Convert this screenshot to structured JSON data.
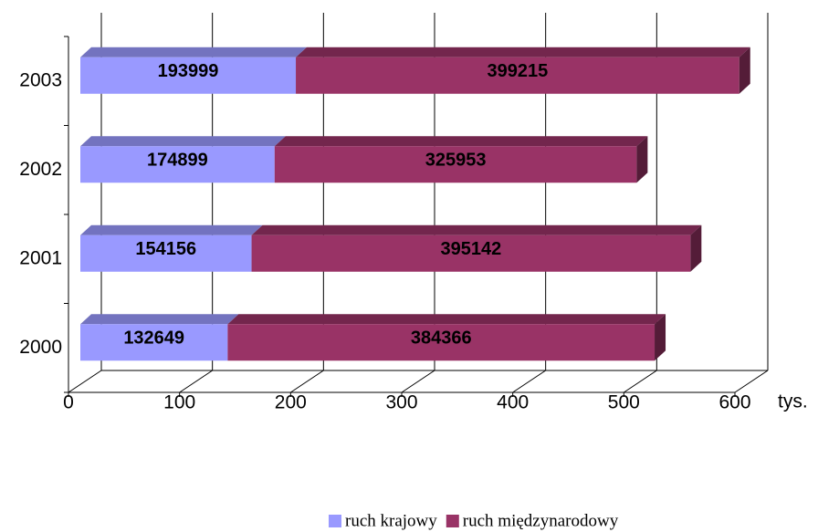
{
  "chart_data": {
    "type": "bar",
    "orientation": "horizontal",
    "stacked": true,
    "x_label": "tys.",
    "categories": [
      "2000",
      "2001",
      "2002",
      "2003"
    ],
    "series": [
      {
        "name": "ruch krajowy",
        "color": "#9999ff",
        "values": [
          132.649,
          154.156,
          174.899,
          193.999
        ],
        "value_labels": [
          "132649",
          "154156",
          "174899",
          "193999"
        ]
      },
      {
        "name": "ruch międzynarodowy",
        "color": "#993366",
        "values": [
          384.366,
          395.142,
          325.953,
          399.215
        ],
        "value_labels": [
          "384366",
          "395142",
          "325953",
          "399215"
        ]
      }
    ],
    "xlim": [
      0,
      600
    ],
    "xticks": [
      0,
      100,
      200,
      300,
      400,
      500,
      600
    ],
    "grid": true
  }
}
